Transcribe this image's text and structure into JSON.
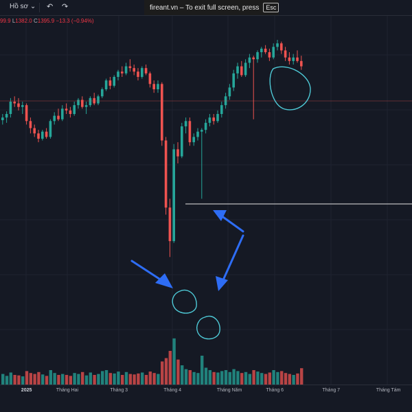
{
  "toolbar": {
    "profile_label": "Hồ sơ",
    "profile_icon": "chevron-down-icon",
    "undo_icon": "undo-icon",
    "redo_icon": "redo-icon"
  },
  "banner": {
    "text": "fireant.vn – To exit full screen, press",
    "key": "Esc"
  },
  "legend": {
    "open_value": "99.9",
    "low_prefix": "L",
    "low_value": "1382.0",
    "close_prefix": "C",
    "close_value": "1395.9",
    "change": "−13.3 (−0.94%)"
  },
  "colors": {
    "up": "#26a69a",
    "down": "#ef5350",
    "background": "#151924",
    "annotation_circle": "#4ec9d6",
    "annotation_arrow": "#2e6df5",
    "reference_line": "#e6e6e6"
  },
  "chart_data": {
    "type": "candlestick",
    "x_ticks": [
      {
        "label": "2025",
        "bold": true
      },
      {
        "label": "Tháng Hai"
      },
      {
        "label": "Tháng 3"
      },
      {
        "label": "Tháng 4"
      },
      {
        "label": "Tháng Năm"
      },
      {
        "label": "Tháng 6"
      },
      {
        "label": "Tháng 7"
      },
      {
        "label": "Tháng Tám"
      }
    ],
    "price_range": [
      1080,
      1360
    ],
    "volume_range": [
      0,
      100
    ],
    "candles": [
      [
        1255,
        1262,
        1250,
        1258,
        22
      ],
      [
        1258,
        1265,
        1252,
        1262,
        18
      ],
      [
        1262,
        1280,
        1258,
        1276,
        25
      ],
      [
        1276,
        1282,
        1270,
        1274,
        20
      ],
      [
        1274,
        1280,
        1266,
        1270,
        19
      ],
      [
        1270,
        1276,
        1262,
        1272,
        17
      ],
      [
        1272,
        1274,
        1250,
        1254,
        28
      ],
      [
        1254,
        1258,
        1240,
        1246,
        24
      ],
      [
        1246,
        1250,
        1236,
        1240,
        22
      ],
      [
        1240,
        1244,
        1230,
        1234,
        26
      ],
      [
        1234,
        1244,
        1232,
        1242,
        21
      ],
      [
        1242,
        1246,
        1234,
        1236,
        18
      ],
      [
        1236,
        1256,
        1234,
        1254,
        30
      ],
      [
        1254,
        1264,
        1250,
        1260,
        24
      ],
      [
        1260,
        1268,
        1254,
        1256,
        20
      ],
      [
        1256,
        1272,
        1254,
        1268,
        22
      ],
      [
        1268,
        1274,
        1262,
        1266,
        20
      ],
      [
        1266,
        1270,
        1258,
        1262,
        18
      ],
      [
        1262,
        1276,
        1260,
        1272,
        24
      ],
      [
        1272,
        1280,
        1268,
        1278,
        22
      ],
      [
        1278,
        1282,
        1268,
        1270,
        26
      ],
      [
        1270,
        1276,
        1262,
        1272,
        19
      ],
      [
        1272,
        1282,
        1270,
        1280,
        25
      ],
      [
        1280,
        1286,
        1272,
        1274,
        20
      ],
      [
        1274,
        1284,
        1272,
        1282,
        22
      ],
      [
        1282,
        1292,
        1280,
        1290,
        28
      ],
      [
        1290,
        1302,
        1288,
        1300,
        30
      ],
      [
        1300,
        1304,
        1290,
        1294,
        24
      ],
      [
        1294,
        1306,
        1292,
        1304,
        23
      ],
      [
        1304,
        1312,
        1300,
        1310,
        27
      ],
      [
        1310,
        1316,
        1304,
        1308,
        20
      ],
      [
        1308,
        1320,
        1306,
        1316,
        26
      ],
      [
        1316,
        1324,
        1310,
        1314,
        22
      ],
      [
        1314,
        1318,
        1306,
        1310,
        21
      ],
      [
        1310,
        1314,
        1300,
        1304,
        23
      ],
      [
        1304,
        1316,
        1302,
        1314,
        25
      ],
      [
        1314,
        1318,
        1306,
        1308,
        20
      ],
      [
        1308,
        1310,
        1292,
        1296,
        27
      ],
      [
        1296,
        1300,
        1286,
        1290,
        24
      ],
      [
        1290,
        1300,
        1286,
        1296,
        22
      ],
      [
        1296,
        1298,
        1226,
        1232,
        48
      ],
      [
        1232,
        1236,
        1148,
        1156,
        55
      ],
      [
        1156,
        1166,
        1100,
        1118,
        70
      ],
      [
        1118,
        1228,
        1116,
        1222,
        96
      ],
      [
        1222,
        1230,
        1206,
        1214,
        52
      ],
      [
        1214,
        1252,
        1212,
        1248,
        40
      ],
      [
        1248,
        1258,
        1240,
        1254,
        32
      ],
      [
        1254,
        1258,
        1226,
        1230,
        30
      ],
      [
        1230,
        1240,
        1226,
        1236,
        26
      ],
      [
        1236,
        1246,
        1232,
        1242,
        24
      ],
      [
        1242,
        1246,
        1166,
        1244,
        60
      ],
      [
        1244,
        1256,
        1240,
        1252,
        35
      ],
      [
        1252,
        1262,
        1248,
        1258,
        30
      ],
      [
        1258,
        1262,
        1250,
        1254,
        26
      ],
      [
        1254,
        1266,
        1252,
        1262,
        25
      ],
      [
        1262,
        1276,
        1258,
        1272,
        28
      ],
      [
        1272,
        1286,
        1268,
        1282,
        30
      ],
      [
        1282,
        1296,
        1278,
        1292,
        26
      ],
      [
        1292,
        1312,
        1288,
        1308,
        32
      ],
      [
        1308,
        1320,
        1302,
        1316,
        28
      ],
      [
        1316,
        1322,
        1304,
        1306,
        24
      ],
      [
        1306,
        1324,
        1304,
        1320,
        26
      ],
      [
        1320,
        1330,
        1314,
        1326,
        22
      ],
      [
        1326,
        1328,
        1256,
        1324,
        30
      ],
      [
        1324,
        1334,
        1320,
        1332,
        27
      ],
      [
        1332,
        1338,
        1326,
        1336,
        24
      ],
      [
        1336,
        1340,
        1330,
        1332,
        22
      ],
      [
        1332,
        1336,
        1322,
        1326,
        25
      ],
      [
        1326,
        1342,
        1324,
        1338,
        30
      ],
      [
        1338,
        1346,
        1334,
        1342,
        26
      ],
      [
        1342,
        1344,
        1330,
        1334,
        28
      ],
      [
        1334,
        1338,
        1322,
        1326,
        24
      ],
      [
        1326,
        1332,
        1318,
        1322,
        22
      ],
      [
        1322,
        1330,
        1318,
        1326,
        20
      ],
      [
        1326,
        1334,
        1320,
        1322,
        23
      ],
      [
        1322,
        1328,
        1312,
        1316,
        34
      ]
    ]
  }
}
